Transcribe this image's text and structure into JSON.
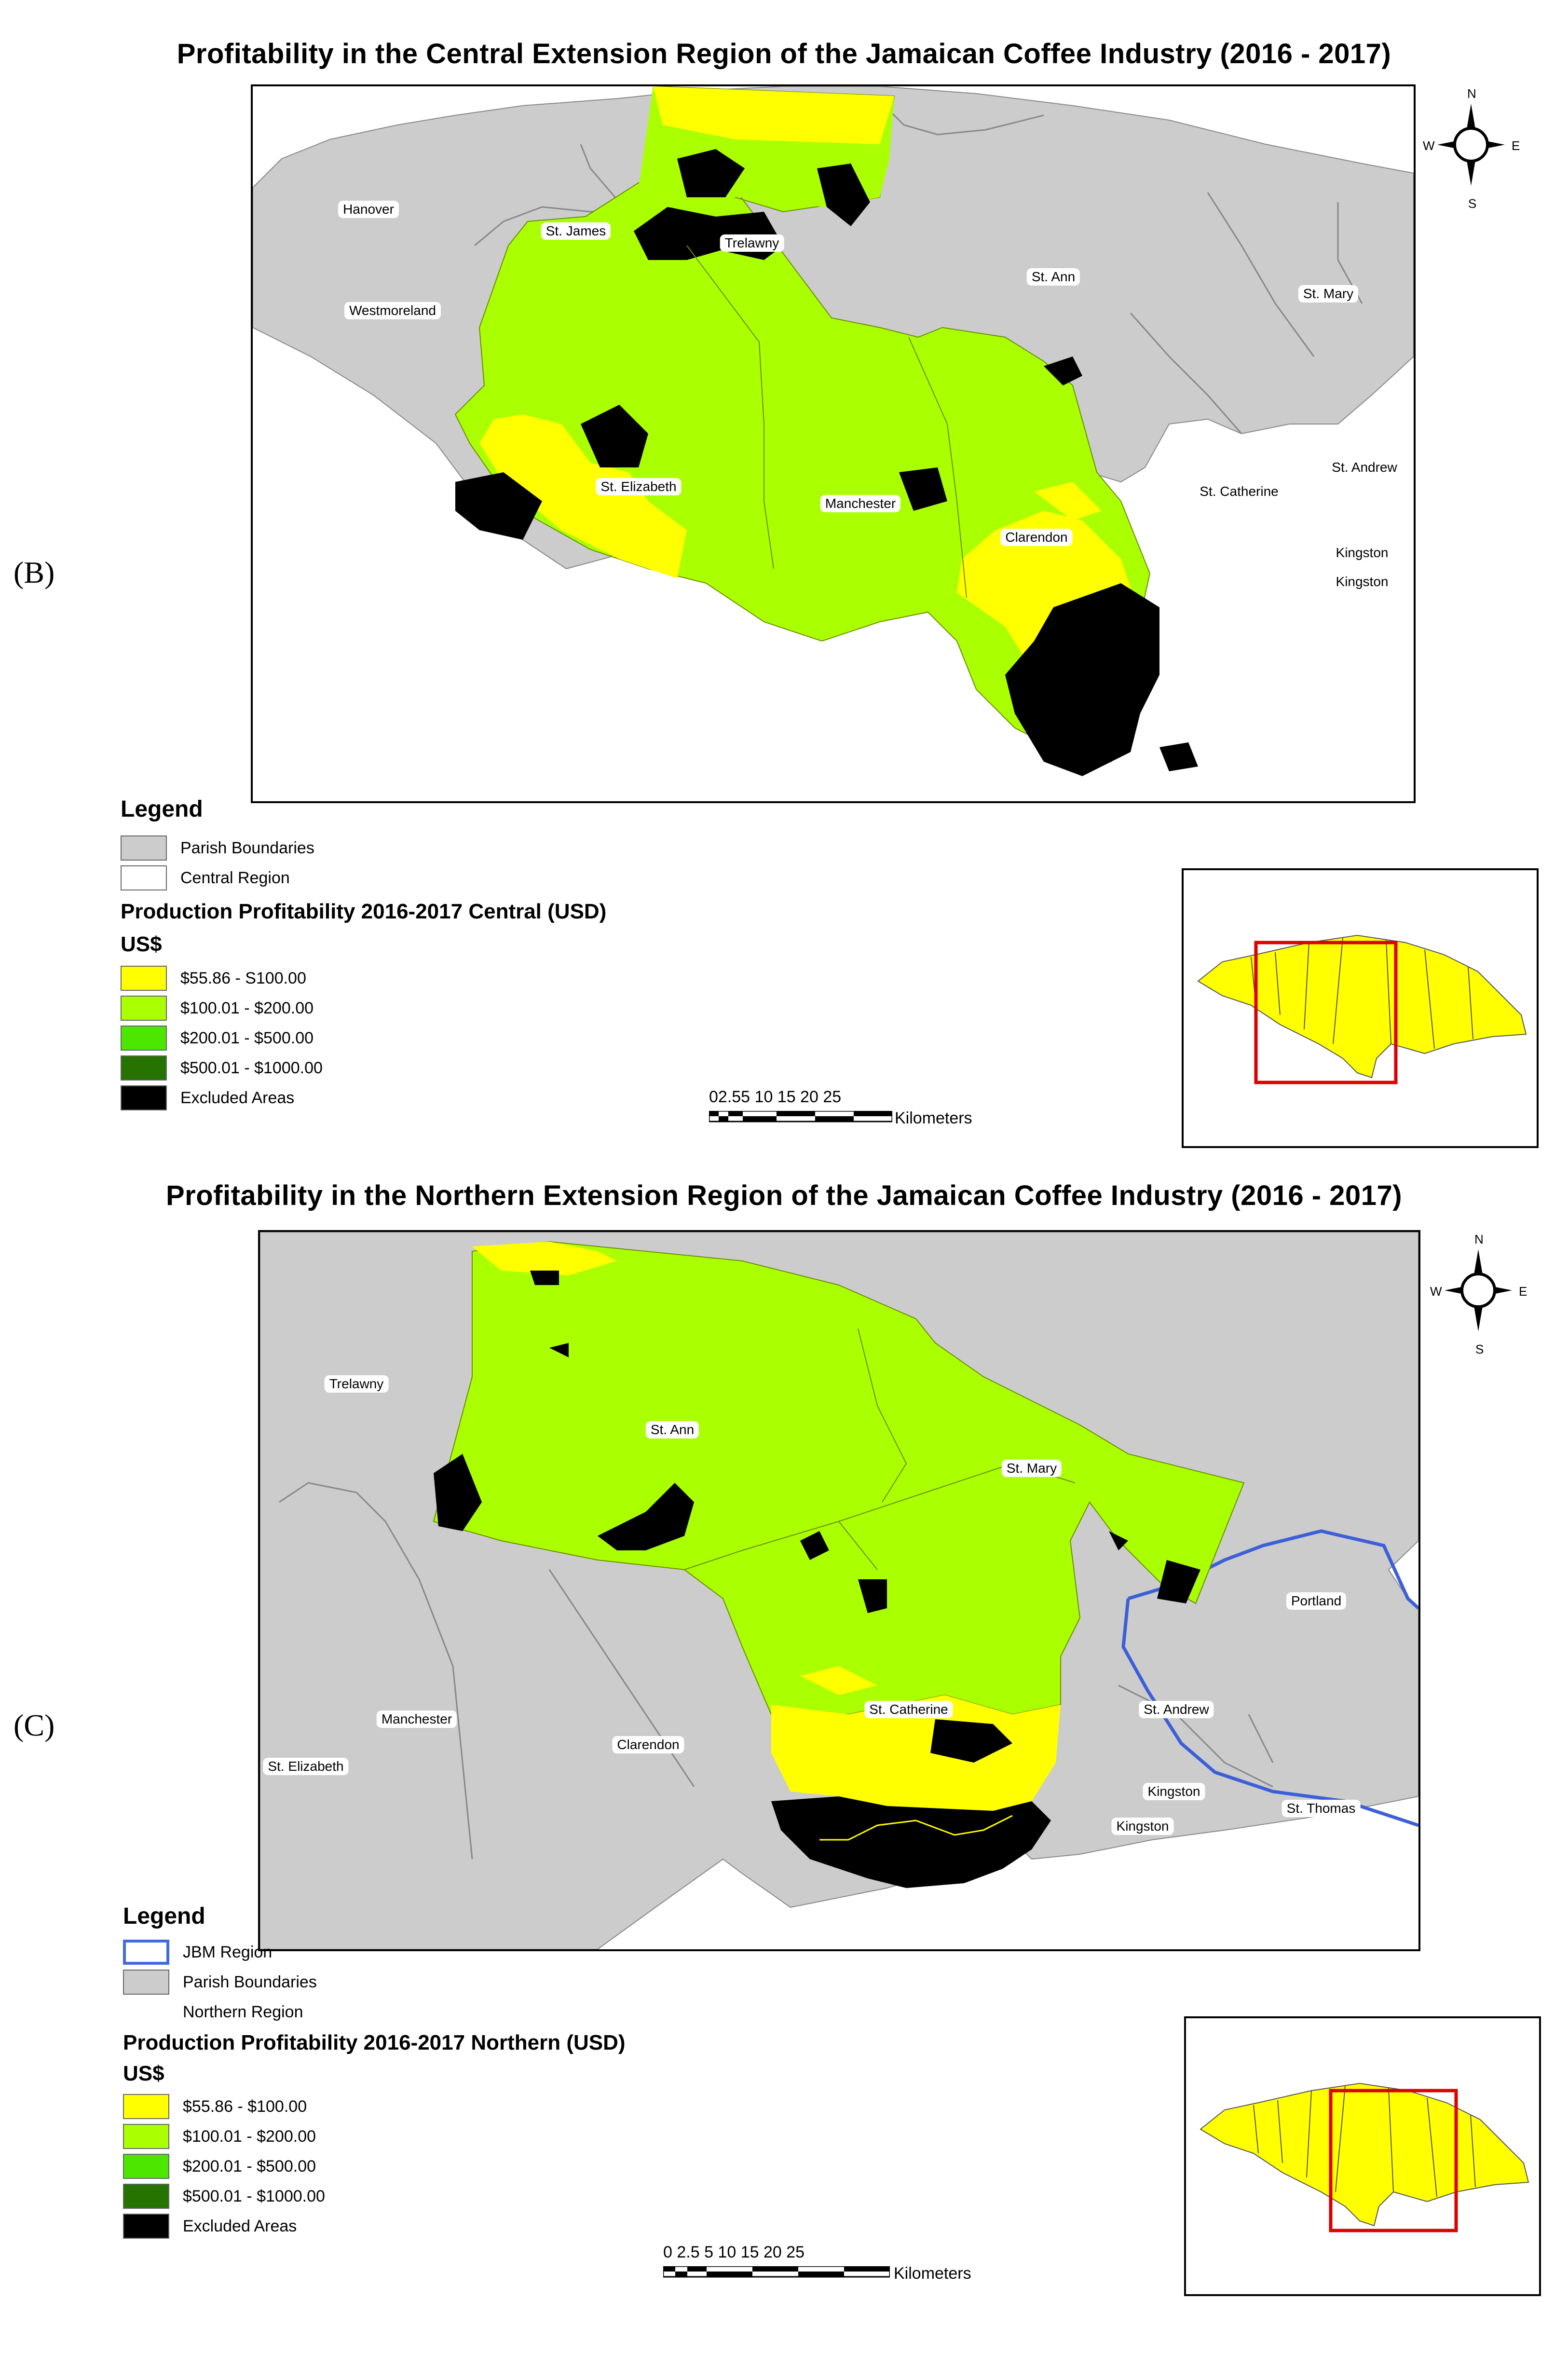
{
  "panels": [
    {
      "id": "B",
      "panel_label": "(B)",
      "title": "Profitability in the Central Extension Region of the Jamaican Coffee Industry (2016 - 2017)",
      "parish_labels": [
        "Hanover",
        "St. James",
        "Trelawny",
        "St. Ann",
        "St. Mary",
        "Westmoreland",
        "St. Elizabeth",
        "Manchester",
        "Clarendon",
        "St. Catherine",
        "St. Andrew",
        "Kingston",
        "Kingston"
      ],
      "compass": {
        "n": "N",
        "s": "S",
        "e": "E",
        "w": "W"
      },
      "legend": {
        "title": "Legend",
        "items": [
          {
            "label": "Parish Boundaries",
            "color": "#cccccc"
          },
          {
            "label": "Central Region",
            "color": "#ffffff"
          }
        ],
        "section_title": "Production Profitability 2016-2017 Central (USD)",
        "unit": "US$",
        "classes": [
          {
            "label": "$55.86 - S100.00",
            "color": "#ffff00"
          },
          {
            "label": "$100.01 - $200.00",
            "color": "#aaff00"
          },
          {
            "label": "$200.01 - $500.00",
            "color": "#4ce600"
          },
          {
            "label": "$500.01 - $1000.00",
            "color": "#267300"
          },
          {
            "label": "Excluded Areas",
            "color": "#000000"
          }
        ]
      },
      "scalebar": {
        "numbers": "02.55 10 15 20 25",
        "unit": "Kilometers"
      }
    },
    {
      "id": "C",
      "panel_label": "(C)",
      "title": "Profitability in the Northern Extension Region of the Jamaican Coffee Industry (2016 - 2017)",
      "parish_labels": [
        "Trelawny",
        "St. Ann",
        "St. Mary",
        "Portland",
        "St. Andrew",
        "St. Catherine",
        "Manchester",
        "Clarendon",
        "St. Elizabeth",
        "Kingston",
        "Kingston",
        "St. Thomas"
      ],
      "compass": {
        "n": "N",
        "s": "S",
        "e": "E",
        "w": "W"
      },
      "legend": {
        "title": "Legend",
        "items": [
          {
            "label": "JBM Region",
            "color": "#4169e1"
          },
          {
            "label": "Parish Boundaries",
            "color": "#cccccc"
          },
          {
            "label": "Northern Region",
            "color": "#ffffff"
          }
        ],
        "section_title": "Production Profitability 2016-2017 Northern (USD)",
        "unit": "US$",
        "classes": [
          {
            "label": "$55.86 - $100.00",
            "color": "#ffff00"
          },
          {
            "label": "$100.01 - $200.00",
            "color": "#aaff00"
          },
          {
            "label": "$200.01 - $500.00",
            "color": "#4ce600"
          },
          {
            "label": "$500.01 - $1000.00",
            "color": "#267300"
          },
          {
            "label": "Excluded Areas",
            "color": "#000000"
          }
        ]
      },
      "scalebar": {
        "numbers": "0 2.5 5 10 15 20 25",
        "unit": "Kilometers"
      }
    }
  ]
}
